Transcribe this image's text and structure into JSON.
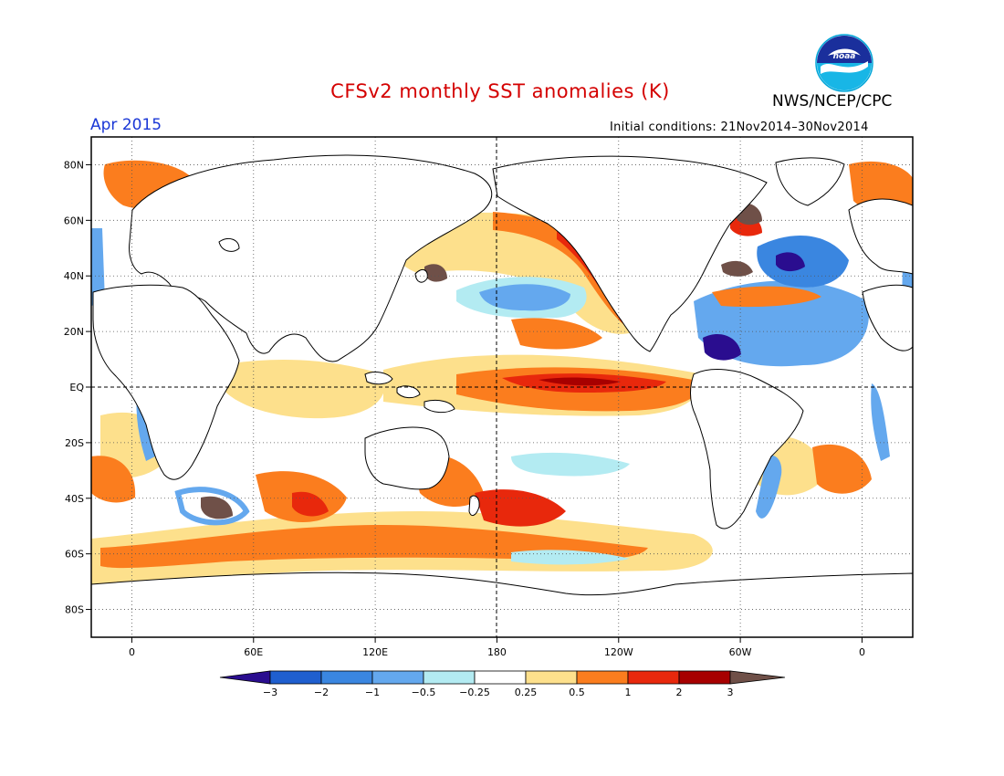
{
  "header": {
    "title": "CFSv2 monthly SST anomalies (K)",
    "org": "NWS/NCEP/CPC",
    "month": "Apr 2015",
    "initial_conditions": "Initial conditions: 21Nov2014–30Nov2014",
    "logo_icon": "noaa-logo-icon"
  },
  "axes": {
    "lat_ticks": [
      {
        "label": "80N",
        "lat": 80
      },
      {
        "label": "60N",
        "lat": 60
      },
      {
        "label": "40N",
        "lat": 40
      },
      {
        "label": "20N",
        "lat": 20
      },
      {
        "label": "EQ",
        "lat": 0
      },
      {
        "label": "20S",
        "lat": -20
      },
      {
        "label": "40S",
        "lat": -40
      },
      {
        "label": "60S",
        "lat": -60
      },
      {
        "label": "80S",
        "lat": -80
      }
    ],
    "lon_ticks": [
      {
        "label": "0",
        "lon": 0
      },
      {
        "label": "60E",
        "lon": 60
      },
      {
        "label": "120E",
        "lon": 120
      },
      {
        "label": "180",
        "lon": 180
      },
      {
        "label": "120W",
        "lon": 240
      },
      {
        "label": "60W",
        "lon": 300
      },
      {
        "label": "0",
        "lon": 360
      }
    ],
    "lon_range": [
      -20,
      385
    ],
    "lat_range": [
      -90,
      90
    ]
  },
  "colorbar": {
    "ticks": [
      "−3",
      "−2",
      "−1",
      "−0.5",
      "−0.25",
      "0.25",
      "0.5",
      "1",
      "2",
      "3"
    ],
    "colors": [
      "#2a0d8f",
      "#1f5fcf",
      "#3a86e0",
      "#64a8ee",
      "#b3ebf2",
      "#ffffff",
      "#fde08c",
      "#fb7d1e",
      "#e8280c",
      "#a70000",
      "#6f5048"
    ]
  }
}
